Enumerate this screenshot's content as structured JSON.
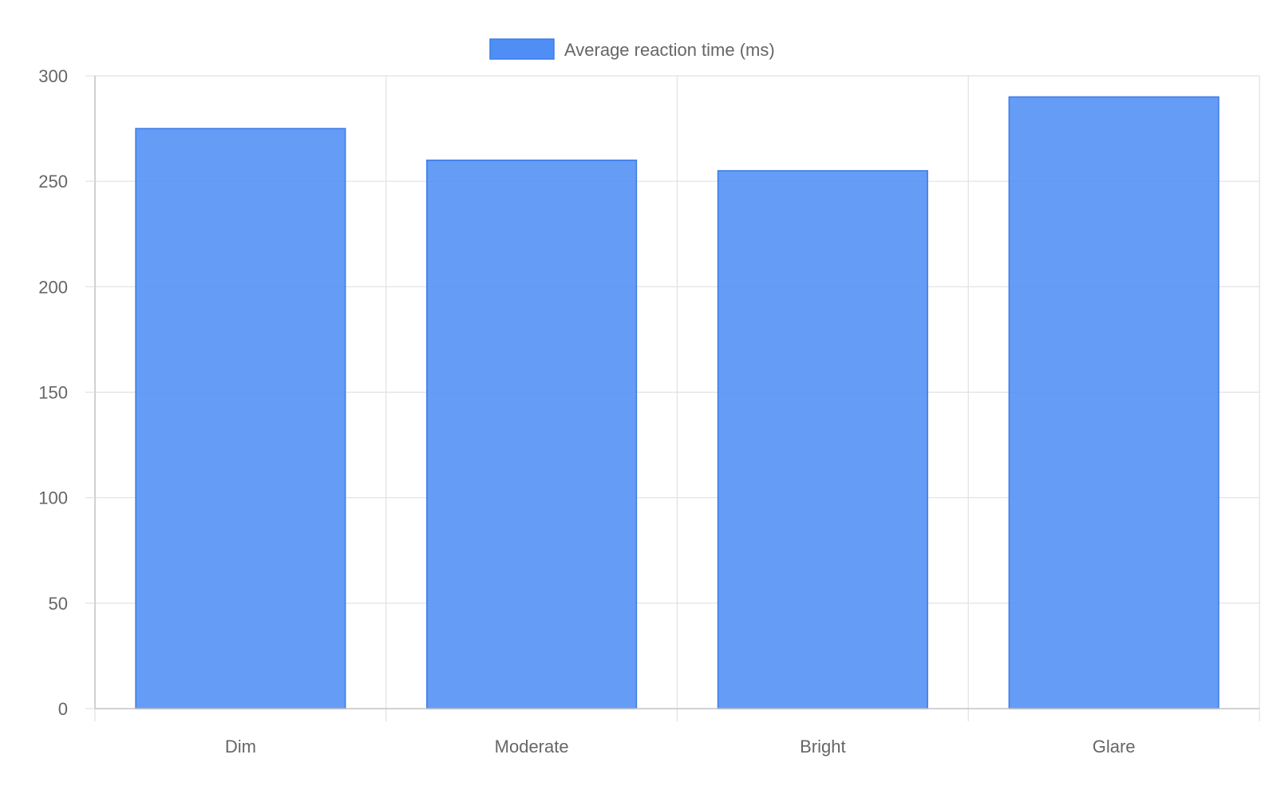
{
  "chart_data": {
    "type": "bar",
    "categories": [
      "Dim",
      "Moderate",
      "Bright",
      "Glare"
    ],
    "series": [
      {
        "name": "Average reaction time (ms)",
        "values": [
          275,
          260,
          255,
          290
        ]
      }
    ],
    "ylim": [
      0,
      300
    ],
    "yticks": [
      0,
      50,
      100,
      150,
      200,
      250,
      300
    ],
    "ytick_labels": [
      "0",
      "50",
      "100",
      "150",
      "200",
      "250",
      "300"
    ],
    "grid": true,
    "legend_position": "top-center",
    "colors": {
      "bar_fill": "#4f8ef5",
      "bar_border": "#3b7be8",
      "grid": "#e1e1e1",
      "axis": "#c4c4c4",
      "text": "#666666"
    }
  }
}
